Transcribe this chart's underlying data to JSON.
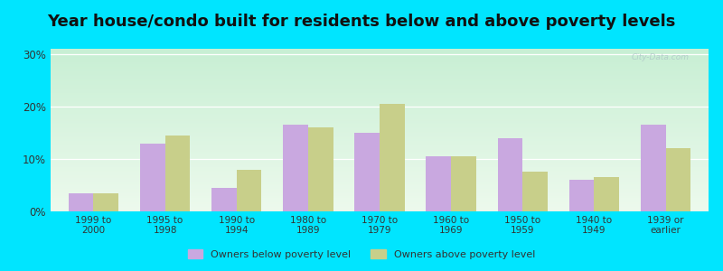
{
  "title": "Year house/condo built for residents below and above poverty levels",
  "categories": [
    "1999 to\n2000",
    "1995 to\n1998",
    "1990 to\n1994",
    "1980 to\n1989",
    "1970 to\n1979",
    "1960 to\n1969",
    "1950 to\n1959",
    "1940 to\n1949",
    "1939 or\nearlier"
  ],
  "below_poverty": [
    3.5,
    13.0,
    4.5,
    16.5,
    15.0,
    10.5,
    14.0,
    6.0,
    16.5
  ],
  "above_poverty": [
    3.5,
    14.5,
    8.0,
    16.0,
    20.5,
    10.5,
    7.5,
    6.5,
    12.0
  ],
  "below_color": "#c9a8e0",
  "above_color": "#c8cf8a",
  "outer_bg": "#00e5ff",
  "ylim": [
    0,
    31
  ],
  "title_fontsize": 13,
  "legend_below_label": "Owners below poverty level",
  "legend_above_label": "Owners above poverty level",
  "bar_width": 0.35,
  "watermark": "City-Data.com"
}
